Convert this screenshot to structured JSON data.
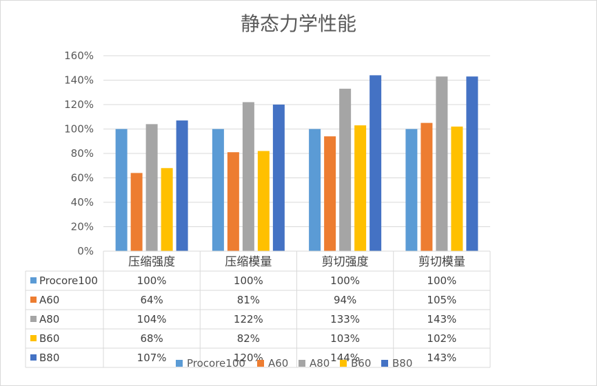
{
  "chart_data": {
    "type": "bar",
    "title": "静态力学性能",
    "categories": [
      "压缩强度",
      "压缩模量",
      "剪切强度",
      "剪切模量"
    ],
    "series": [
      {
        "name": "Procore100",
        "color": "#5B9BD5",
        "values": [
          100,
          100,
          100,
          100
        ],
        "labels": [
          "100%",
          "100%",
          "100%",
          "100%"
        ]
      },
      {
        "name": "A60",
        "color": "#ED7D31",
        "values": [
          64,
          81,
          94,
          105
        ],
        "labels": [
          "64%",
          "81%",
          "94%",
          "105%"
        ]
      },
      {
        "name": "A80",
        "color": "#A5A5A5",
        "values": [
          104,
          122,
          133,
          143
        ],
        "labels": [
          "104%",
          "122%",
          "133%",
          "143%"
        ]
      },
      {
        "name": "B60",
        "color": "#FFC000",
        "values": [
          68,
          82,
          103,
          102
        ],
        "labels": [
          "68%",
          "82%",
          "103%",
          "102%"
        ]
      },
      {
        "name": "B80",
        "color": "#4472C4",
        "values": [
          107,
          120,
          144,
          143
        ],
        "labels": [
          "107%",
          "120%",
          "144%",
          "143%"
        ]
      }
    ],
    "ylim": [
      0,
      160
    ],
    "yticks": [
      {
        "value": 0,
        "label": "0%"
      },
      {
        "value": 20,
        "label": "20%"
      },
      {
        "value": 40,
        "label": "40%"
      },
      {
        "value": 60,
        "label": "60%"
      },
      {
        "value": 80,
        "label": "80%"
      },
      {
        "value": 100,
        "label": "100%"
      },
      {
        "value": 120,
        "label": "120%"
      },
      {
        "value": 140,
        "label": "140%"
      },
      {
        "value": 160,
        "label": "160%"
      }
    ],
    "grid": true,
    "data_table": true,
    "legend_position": "bottom"
  }
}
